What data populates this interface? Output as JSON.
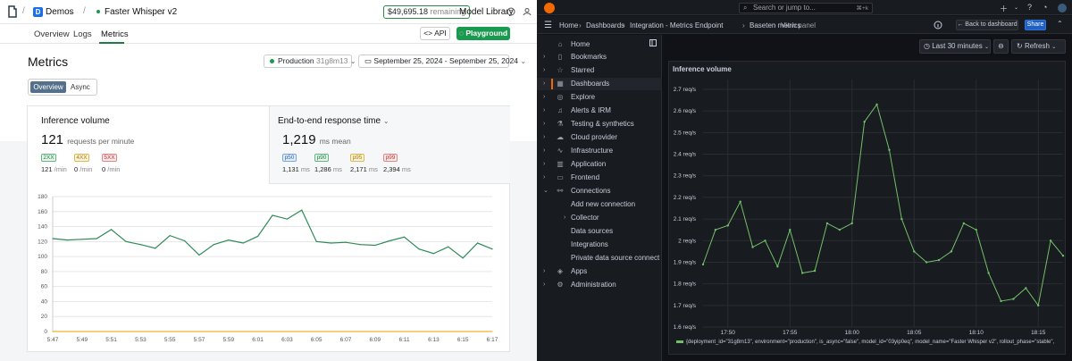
{
  "left": {
    "breadcrumb": {
      "workspace_initial": "D",
      "workspace": "Demos",
      "model": "Faster Whisper v2"
    },
    "balance": {
      "amount": "$49,695.18",
      "suffix": "remaining"
    },
    "top_links": {
      "model_library": "Model Library"
    },
    "tabs": [
      "Overview",
      "Logs",
      "Metrics"
    ],
    "active_tab": "Metrics",
    "buttons": {
      "api": "API",
      "playground": "Playground"
    },
    "page_title": "Metrics",
    "environment": {
      "label": "Production",
      "id": "31g8m13"
    },
    "date_range": "September 25, 2024 - September 25, 2024",
    "segmented": [
      "Overview",
      "Async"
    ],
    "inference": {
      "title": "Inference volume",
      "value": "121",
      "unit": "requests per minute",
      "codes": [
        {
          "label": "2XX",
          "value": "121",
          "unit": "/min"
        },
        {
          "label": "4XX",
          "value": "0",
          "unit": "/min"
        },
        {
          "label": "5XX",
          "value": "0",
          "unit": "/min"
        }
      ]
    },
    "latency": {
      "title": "End-to-end response time",
      "value": "1,219",
      "unit": "ms mean",
      "percentiles": [
        {
          "label": "p50",
          "value": "1,131",
          "unit": "ms"
        },
        {
          "label": "p90",
          "value": "1,286",
          "unit": "ms"
        },
        {
          "label": "p95",
          "value": "2,171",
          "unit": "ms"
        },
        {
          "label": "p99",
          "value": "2,394",
          "unit": "ms"
        }
      ]
    },
    "colors": {
      "accent": "#1a9a4f",
      "series_2xx": "#2e8b57",
      "series_4xx": "#f0b232"
    }
  },
  "right": {
    "search_placeholder": "Search or jump to...",
    "search_shortcut": "⌘+k",
    "breadcrumb": [
      "Home",
      "Dashboards",
      "Integration - Metrics Endpoint",
      "Baseten metrics",
      "View panel"
    ],
    "back_button": "Back to dashboard",
    "share_button": "Share",
    "time_picker": "Last 30 minutes",
    "refresh": "Refresh",
    "nav": [
      {
        "label": "Home",
        "icon": "home-icon"
      },
      {
        "label": "Bookmarks",
        "icon": "bookmark-icon"
      },
      {
        "label": "Starred",
        "icon": "star-icon"
      },
      {
        "label": "Dashboards",
        "icon": "dashboards-icon"
      },
      {
        "label": "Explore",
        "icon": "explore-icon"
      },
      {
        "label": "Alerts & IRM",
        "icon": "bell-icon"
      },
      {
        "label": "Testing & synthetics",
        "icon": "flask-icon"
      },
      {
        "label": "Cloud provider",
        "icon": "cloud-icon"
      },
      {
        "label": "Infrastructure",
        "icon": "pulse-icon"
      },
      {
        "label": "Application",
        "icon": "chart-icon"
      },
      {
        "label": "Frontend",
        "icon": "monitor-icon"
      },
      {
        "label": "Connections",
        "icon": "plug-icon"
      },
      {
        "label": "Add new connection",
        "icon": ""
      },
      {
        "label": "Collector",
        "icon": ""
      },
      {
        "label": "Data sources",
        "icon": ""
      },
      {
        "label": "Integrations",
        "icon": ""
      },
      {
        "label": "Private data source connect",
        "icon": ""
      },
      {
        "label": "Apps",
        "icon": "apps-icon"
      },
      {
        "label": "Administration",
        "icon": "gear-icon"
      }
    ],
    "active_nav": "Dashboards",
    "panel_title": "Inference volume",
    "legend": "{deployment_id=\"31g8m13\", environment=\"production\", is_async=\"false\", model_id=\"03yip0eq\", model_name=\"Faster Whisper v2\", rollout_phase=\"stable\","
  },
  "chart_data": [
    {
      "type": "line",
      "title": "",
      "x": [
        "5:47",
        "5:48",
        "5:49",
        "5:50",
        "5:51",
        "5:52",
        "5:53",
        "5:54",
        "5:55",
        "5:56",
        "5:57",
        "5:58",
        "5:59",
        "6:00",
        "6:01",
        "6:02",
        "6:03",
        "6:04",
        "6:05",
        "6:06",
        "6:07",
        "6:08",
        "6:09",
        "6:10",
        "6:11",
        "6:12",
        "6:13",
        "6:14",
        "6:15",
        "6:16",
        "6:17"
      ],
      "xtick_labels": [
        "5:47",
        "5:49",
        "5:51",
        "5:53",
        "5:55",
        "5:57",
        "5:59",
        "6:01",
        "6:03",
        "6:05",
        "6:07",
        "6:09",
        "6:11",
        "6:13",
        "6:15",
        "6:17"
      ],
      "series": [
        {
          "name": "2XX",
          "values": [
            124,
            122,
            123,
            124,
            136,
            120,
            116,
            111,
            128,
            121,
            102,
            116,
            122,
            118,
            127,
            155,
            150,
            162,
            120,
            118,
            119,
            116,
            115,
            121,
            126,
            110,
            104,
            113,
            98,
            118,
            110
          ]
        },
        {
          "name": "4XX",
          "values": [
            0,
            0,
            0,
            0,
            0,
            0,
            0,
            0,
            0,
            0,
            0,
            0,
            0,
            0,
            0,
            0,
            0,
            0,
            0,
            0,
            0,
            0,
            0,
            0,
            0,
            0,
            0,
            0,
            0,
            0,
            0
          ]
        }
      ],
      "ylim": [
        0,
        180
      ],
      "yticks": [
        0,
        20,
        40,
        60,
        80,
        100,
        120,
        140,
        160,
        180
      ],
      "grid": true
    },
    {
      "type": "line",
      "title": "Inference volume",
      "x": [
        "17:48",
        "17:49",
        "17:50",
        "17:51",
        "17:52",
        "17:53",
        "17:54",
        "17:55",
        "17:56",
        "17:57",
        "17:58",
        "17:59",
        "18:00",
        "18:01",
        "18:02",
        "18:03",
        "18:04",
        "18:05",
        "18:06",
        "18:07",
        "18:08",
        "18:09",
        "18:10",
        "18:11",
        "18:12",
        "18:13",
        "18:14",
        "18:15",
        "18:16",
        "18:17"
      ],
      "xtick_labels": [
        "17:50",
        "17:55",
        "18:00",
        "18:05",
        "18:10",
        "18:15"
      ],
      "series": [
        {
          "name": "",
          "values": [
            1.89,
            2.05,
            2.07,
            2.18,
            1.97,
            2.0,
            1.88,
            2.05,
            1.85,
            1.86,
            2.08,
            2.05,
            2.08,
            2.55,
            2.63,
            2.42,
            2.1,
            1.95,
            1.9,
            1.91,
            1.95,
            2.08,
            2.05,
            1.85,
            1.72,
            1.73,
            1.78,
            1.7,
            2.0,
            1.93
          ]
        }
      ],
      "yticks": [
        "1.6 req/s",
        "1.7 req/s",
        "1.8 req/s",
        "1.9 req/s",
        "2 req/s",
        "2.1 req/s",
        "2.2 req/s",
        "2.3 req/s",
        "2.4 req/s",
        "2.5 req/s",
        "2.6 req/s",
        "2.7 req/s"
      ],
      "ylim": [
        1.6,
        2.7
      ],
      "unit": "req/s"
    }
  ]
}
